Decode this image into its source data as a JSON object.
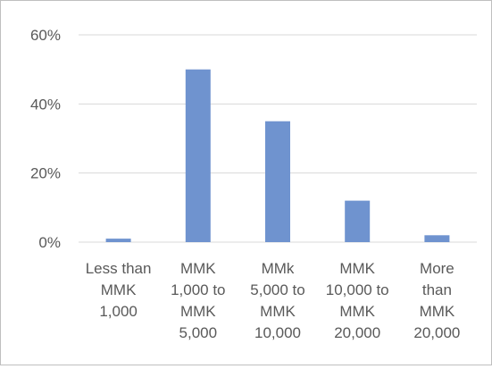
{
  "chart_data": {
    "type": "bar",
    "categories": [
      [
        "Less than",
        "MMK",
        "1,000"
      ],
      [
        "MMK",
        "1,000 to",
        "MMK",
        "5,000"
      ],
      [
        "MMk",
        "5,000 to",
        "MMK",
        "10,000"
      ],
      [
        "MMK",
        "10,000 to",
        "MMK",
        "20,000"
      ],
      [
        "More",
        "than",
        "MMK",
        "20,000"
      ]
    ],
    "values": [
      1,
      50,
      35,
      12,
      2
    ],
    "value_format": "percent",
    "ylim": [
      0,
      60
    ],
    "yticks": [
      0,
      20,
      40,
      60
    ],
    "ytick_labels": [
      "0%",
      "20%",
      "40%",
      "60%"
    ],
    "grid": true,
    "legend": "none",
    "title": "",
    "xlabel": "",
    "ylabel": "",
    "bar_color": "#6f93cf",
    "grid_color": "#d9d9d9",
    "text_color": "#595959"
  }
}
